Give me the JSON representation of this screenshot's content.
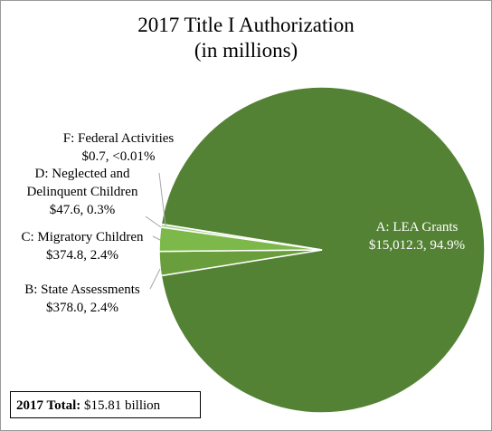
{
  "chart_data": {
    "type": "pie",
    "title": "2017 Title I Authorization",
    "subtitle": "(in millions)",
    "categories": [
      "A: LEA Grants",
      "B: State Assessments",
      "C: Migratory Children",
      "D: Neglected and Delinquent Children",
      "F: Federal Activities"
    ],
    "values": [
      15012.3,
      378.0,
      374.8,
      47.6,
      0.7
    ],
    "value_labels": [
      "$15,012.3, 94.9%",
      "$378.0, 2.4%",
      "$374.8, 2.4%",
      "$47.6, 0.3%",
      "$0.7, <0.01%"
    ],
    "colors": [
      "#548235",
      "#6a9e3c",
      "#7db84a",
      "#a9d18e",
      "#c5e0b4"
    ],
    "total_label": "2017 Total:",
    "total_value": "$15.81 billion"
  }
}
